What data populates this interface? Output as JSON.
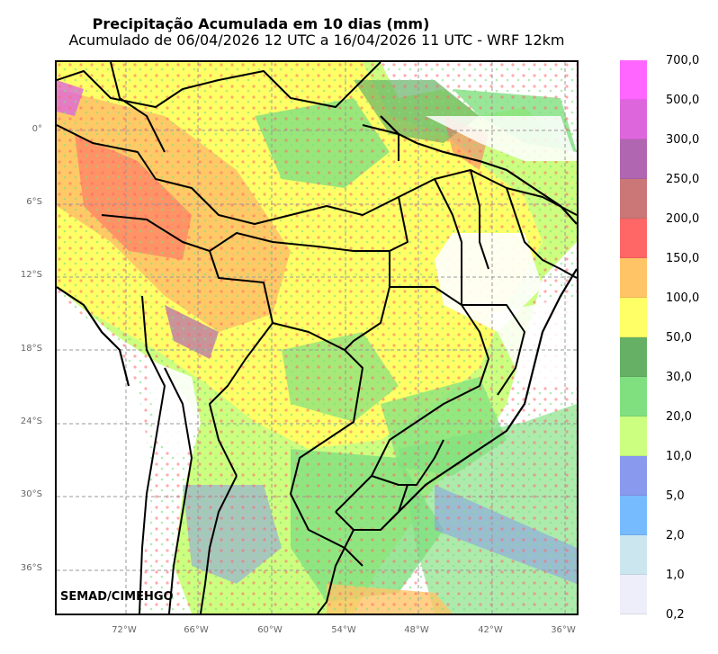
{
  "title": "Precipitação Acumulada em 10 dias (mm)",
  "subtitle": "Acumulado de 06/04/2026 12 UTC a 16/04/2026 11 UTC - WRF 12km",
  "credit": "SEMAD/CIMEHGO",
  "lat_labels": [
    "0°",
    "6°S",
    "12°S",
    "18°S",
    "24°S",
    "30°S",
    "36°S"
  ],
  "lon_labels": [
    "72°W",
    "66°W",
    "60°W",
    "54°W",
    "48°W",
    "42°W",
    "36°W"
  ],
  "colorbar": {
    "labels": [
      "700,0",
      "500,0",
      "300,0",
      "250,0",
      "200,0",
      "150,0",
      "100,0",
      "50,0",
      "30,0",
      "20,0",
      "10,0",
      "5,0",
      "2,0",
      "1,0",
      "0,2"
    ],
    "colors": [
      "#ff66ff",
      "#dd66dd",
      "#b066b0",
      "#cc7777",
      "#ff6666",
      "#ffc466",
      "#ffff66",
      "#66b066",
      "#80e080",
      "#ccff80",
      "#8899ee",
      "#77bbff",
      "#cce6f0",
      "#eeeefa"
    ]
  }
}
